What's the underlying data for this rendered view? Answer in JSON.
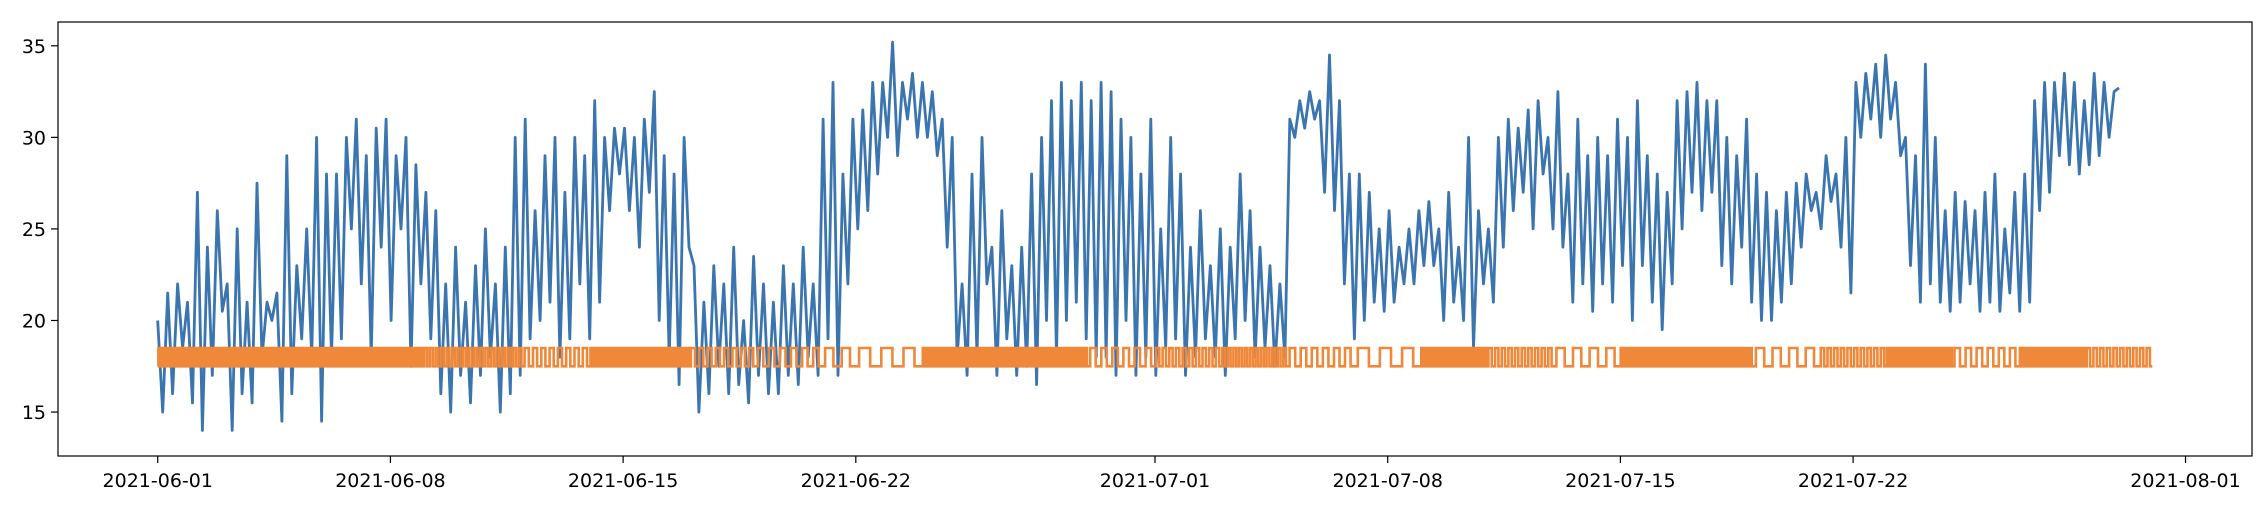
{
  "chart_data": {
    "type": "line",
    "title": "",
    "xlabel": "",
    "ylabel": "",
    "xlim": [
      "2021-05-29",
      "2021-08-03"
    ],
    "ylim": [
      12.6,
      36.3
    ],
    "x_ticks": [
      "2021-06-01",
      "2021-06-08",
      "2021-06-15",
      "2021-06-22",
      "2021-07-01",
      "2021-07-08",
      "2021-07-15",
      "2021-07-22",
      "2021-08-01"
    ],
    "y_ticks": [
      15,
      20,
      25,
      30,
      35
    ],
    "grid": false,
    "legend": "none",
    "series": [
      {
        "color": "#3b75af",
        "x_range": [
          "2021-06-01",
          "2021-07-30"
        ],
        "values": [
          [
            20.0,
            15.0,
            21.5,
            16.0,
            22.0,
            18.5,
            21.0,
            15.5,
            27.0,
            14.0,
            24.0,
            17.0,
            26.0,
            20.5,
            22.0,
            14.0,
            25.0,
            16.0
          ],
          [
            21.0,
            15.5,
            27.5,
            18.0,
            21.0,
            20.0,
            21.5,
            14.5,
            29.0,
            16.0,
            23.0,
            19.0,
            25.0,
            18.0,
            30.0,
            14.5,
            28.0,
            18.0
          ],
          [
            28.0,
            19.0,
            30.0,
            25.0,
            31.0,
            22.0,
            29.0,
            18.0,
            30.5,
            24.0,
            31.0,
            20.0,
            29.0,
            25.0,
            30.0,
            17.5,
            28.5,
            22.0
          ],
          [
            27.0,
            19.0,
            26.0,
            16.0,
            22.0,
            15.0,
            24.0,
            17.0,
            21.0,
            15.5,
            23.0,
            17.0,
            25.0,
            18.0,
            22.0,
            15.0,
            24.0,
            16.0
          ],
          [
            30.0,
            17.0,
            31.0,
            19.0,
            26.0,
            20.0,
            29.0,
            21.0,
            30.0,
            18.0,
            27.0,
            19.0,
            30.0,
            22.0,
            29.0,
            19.0,
            32.0,
            21.0
          ],
          [
            30.0,
            26.0,
            30.5,
            28.0,
            30.5,
            26.0,
            30.0,
            24.0,
            31.0,
            27.0,
            32.5,
            20.0,
            29.0,
            18.0,
            28.0,
            16.5,
            30.0,
            24.0
          ],
          [
            23.0,
            15.0,
            21.0,
            16.0,
            23.0,
            17.5,
            22.0,
            16.0,
            24.0,
            16.5,
            20.0,
            15.5,
            23.5,
            17.0,
            22.0,
            16.0,
            21.0,
            16.0
          ],
          [
            23.0,
            17.0,
            22.0,
            16.5,
            24.0,
            18.0,
            22.0,
            17.0,
            31.0,
            19.0,
            33.0,
            17.0,
            28.0,
            22.0,
            31.0,
            25.0,
            31.5,
            26.0
          ],
          [
            33.0,
            28.0,
            33.0,
            30.0,
            35.2,
            29.0,
            33.0,
            31.0,
            33.5,
            30.0,
            33.0,
            30.0,
            32.5,
            29.0,
            31.0,
            24.0,
            30.0,
            18.0
          ],
          [
            22.0,
            17.0,
            28.0,
            18.0,
            30.0,
            22.0,
            24.0,
            17.0,
            26.0,
            19.0,
            23.0,
            17.0,
            24.0,
            17.5,
            28.0,
            16.5,
            30.0,
            20.0
          ],
          [
            32.0,
            18.0,
            33.0,
            20.0,
            32.0,
            21.0,
            33.0,
            19.0,
            32.0,
            18.0,
            33.0,
            18.0,
            32.5,
            17.0,
            31.0,
            20.0,
            30.0,
            17.0
          ],
          [
            28.0,
            18.0,
            31.0,
            17.0,
            25.0,
            18.5,
            30.0,
            19.0,
            28.0,
            17.0,
            24.0,
            18.0,
            26.0,
            19.0,
            23.0,
            18.0,
            25.0,
            17.0
          ],
          [
            24.0,
            19.0,
            28.0,
            20.0,
            26.0,
            18.0,
            24.0,
            18.5,
            23.0,
            17.5,
            22.0,
            18.0,
            31.0,
            30.0,
            32.0,
            30.5,
            32.5,
            31.0
          ],
          [
            32.0,
            27.0,
            34.5,
            26.0,
            32.0,
            22.0,
            28.0,
            19.0,
            28.0,
            20.0,
            27.0,
            21.0,
            25.0,
            20.5,
            26.0,
            21.0,
            24.0,
            22.0
          ],
          [
            25.0,
            22.0,
            26.0,
            23.0,
            26.5,
            23.0,
            25.0,
            20.0,
            27.0,
            21.0,
            24.0,
            20.0,
            30.0,
            18.5,
            26.0,
            22.0,
            25.0,
            21.0
          ],
          [
            30.0,
            24.0,
            31.0,
            26.0,
            30.5,
            27.0,
            31.5,
            25.0,
            32.0,
            28.0,
            30.0,
            25.0,
            32.5,
            24.0,
            28.0,
            21.0,
            31.0,
            22.0
          ],
          [
            29.0,
            20.5,
            30.0,
            22.0,
            29.0,
            21.0,
            31.0,
            23.0,
            30.0,
            20.0,
            32.0,
            23.0,
            29.0,
            21.0,
            28.0,
            19.5,
            27.0,
            22.0
          ],
          [
            32.0,
            25.0,
            32.5,
            27.0,
            33.0,
            26.0,
            32.0,
            27.0,
            32.0,
            23.0,
            30.0,
            22.0,
            29.0,
            24.0,
            31.0,
            21.0,
            28.0,
            20.0
          ],
          [
            27.0,
            20.0,
            26.0,
            21.0,
            27.0,
            22.0,
            27.5,
            24.0,
            28.0,
            26.0,
            27.0,
            25.0,
            29.0,
            26.5,
            28.0,
            24.0,
            30.0,
            21.5
          ],
          [
            33.0,
            30.0,
            33.5,
            31.0,
            34.0,
            30.0,
            34.5,
            31.0,
            33.0,
            29.0,
            30.0,
            23.0,
            29.0,
            21.0,
            34.0,
            22.0,
            30.0,
            21.0
          ],
          [
            26.0,
            20.5,
            27.0,
            21.0,
            26.5,
            22.0,
            26.0,
            20.5,
            27.0,
            21.0,
            28.0,
            20.5,
            25.0,
            21.5,
            27.0,
            20.5,
            28.0,
            21.0
          ],
          [
            32.0,
            26.0,
            33.0,
            27.0,
            33.0,
            29.0,
            33.5,
            28.5,
            33.0,
            28.0,
            32.0,
            28.5,
            33.5,
            29.0,
            33.0,
            30.0,
            32.5,
            32.7
          ]
        ]
      },
      {
        "color": "#f0883a",
        "x_range": [
          "2021-06-01",
          "2021-07-31"
        ],
        "base": 17.5,
        "peak": 18.5,
        "on_ranges": [
          [
            "2021-06-01",
            "2021-06-04"
          ],
          [
            "2021-06-04",
            "2021-06-05"
          ],
          [
            "2021-06-05",
            "2021-06-07"
          ],
          [
            "2021-06-07",
            "2021-06-09"
          ],
          [
            "2021-06-09",
            "2021-06-11"
          ],
          [
            "2021-06-11",
            "2021-06-12"
          ],
          [
            "2021-06-12",
            "2021-06-14"
          ],
          [
            "2021-06-14",
            "2021-06-16"
          ],
          [
            "2021-06-16",
            "2021-06-17"
          ],
          [
            "2021-06-17",
            "2021-06-19"
          ],
          [
            "2021-06-19",
            "2021-06-21"
          ],
          [
            "2021-06-21",
            "2021-06-22"
          ],
          [
            "2021-06-22",
            "2021-06-24"
          ],
          [
            "2021-06-24",
            "2021-06-26"
          ],
          [
            "2021-06-26",
            "2021-06-27"
          ],
          [
            "2021-06-27",
            "2021-06-29"
          ],
          [
            "2021-06-29",
            "2021-07-01"
          ],
          [
            "2021-07-01",
            "2021-07-03"
          ],
          [
            "2021-07-03",
            "2021-07-05"
          ],
          [
            "2021-07-05",
            "2021-07-07"
          ],
          [
            "2021-07-07",
            "2021-07-09"
          ],
          [
            "2021-07-09",
            "2021-07-11"
          ],
          [
            "2021-07-11",
            "2021-07-13"
          ],
          [
            "2021-07-13",
            "2021-07-15"
          ],
          [
            "2021-07-15",
            "2021-07-17"
          ],
          [
            "2021-07-17",
            "2021-07-19"
          ],
          [
            "2021-07-19",
            "2021-07-21"
          ],
          [
            "2021-07-21",
            "2021-07-23"
          ],
          [
            "2021-07-23",
            "2021-07-25"
          ],
          [
            "2021-07-25",
            "2021-07-27"
          ],
          [
            "2021-07-27",
            "2021-07-29"
          ],
          [
            "2021-07-29",
            "2021-07-31"
          ]
        ],
        "on_counts": [
          24,
          8,
          14,
          26,
          12,
          6,
          8,
          16,
          12,
          8,
          6,
          2,
          3,
          22,
          18,
          14,
          6,
          10,
          12,
          6,
          3,
          30,
          10,
          4,
          30,
          14,
          4,
          10,
          22,
          6,
          16,
          10
        ]
      }
    ]
  }
}
